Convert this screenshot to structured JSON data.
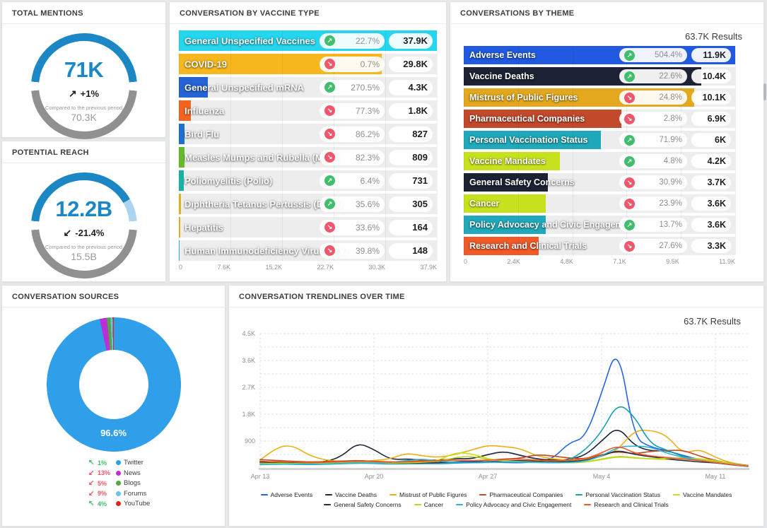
{
  "colors": {
    "gauge_blue": "#1b87c5",
    "gauge_lightblue": "#abd5ef",
    "gauge_gray": "#909090",
    "up_green": "#3fbe6b",
    "down_red": "#f2566a"
  },
  "panels": {
    "total_mentions": {
      "title": "TOTAL MENTIONS",
      "value": "71K",
      "trend_arrow": "↗",
      "trend": "+1%",
      "compare_label": "Compared to the previous period",
      "previous": "70.3K",
      "ring_segments": [
        {
          "color": "#909090",
          "from": 0,
          "to": 170
        },
        {
          "color": "transparent",
          "from": 170,
          "to": 180
        },
        {
          "color": "#1b87c5",
          "from": 180,
          "to": 350
        },
        {
          "color": "transparent",
          "from": 350,
          "to": 360
        }
      ]
    },
    "potential_reach": {
      "title": "POTENTIAL REACH",
      "value": "12.2B",
      "trend_arrow": "↙",
      "trend": "-21.4%",
      "compare_label": "Compared to the previous period",
      "previous": "15.5B",
      "ring_segments": [
        {
          "color": "#909090",
          "from": 0,
          "to": 170
        },
        {
          "color": "transparent",
          "from": 170,
          "to": 180
        },
        {
          "color": "#1b87c5",
          "from": 180,
          "to": 325
        },
        {
          "color": "#abd5ef",
          "from": 325,
          "to": 350
        },
        {
          "color": "transparent",
          "from": 350,
          "to": 360
        }
      ]
    },
    "vaccine_type": {
      "title": "CONVERSATION BY VACCINE TYPE",
      "type": "bar",
      "max": 37900,
      "axis": [
        "0",
        "7.6K",
        "15.2K",
        "22.7K",
        "30.3K",
        "37.9K"
      ],
      "rows": [
        {
          "label": "General Unspecified Vaccines",
          "color": "#25d6ee",
          "value": 37900,
          "value_label": "37.9K",
          "pct": "22.7%",
          "dir": "up"
        },
        {
          "label": "COVID-19",
          "color": "#f6b71f",
          "value": 29800,
          "value_label": "29.8K",
          "pct": "0.7%",
          "dir": "down"
        },
        {
          "label": "General Unspecified mRNA",
          "color": "#2563d4",
          "value": 4300,
          "value_label": "4.3K",
          "pct": "270.5%",
          "dir": "up"
        },
        {
          "label": "Influenza",
          "color": "#f2641f",
          "value": 1800,
          "value_label": "1.8K",
          "pct": "77.3%",
          "dir": "down"
        },
        {
          "label": "Bird Flu",
          "color": "#1e6fd2",
          "value": 827,
          "value_label": "827",
          "pct": "86.2%",
          "dir": "down"
        },
        {
          "label": "Measles Mumps and Rubella (MMR)",
          "color": "#63bb2a",
          "value": 809,
          "value_label": "809",
          "pct": "82.3%",
          "dir": "down"
        },
        {
          "label": "Poliomyelitis (Polio)",
          "color": "#17b1a6",
          "value": 731,
          "value_label": "731",
          "pct": "6.4%",
          "dir": "up"
        },
        {
          "label": "Diphtheria Tetanus Pertussis (DTaP)",
          "color": "#e3b220",
          "value": 305,
          "value_label": "305",
          "pct": "35.6%",
          "dir": "up"
        },
        {
          "label": "Hepatitis",
          "color": "#e3b220",
          "value": 164,
          "value_label": "164",
          "pct": "33.6%",
          "dir": "down"
        },
        {
          "label": "Human Immunodeficiency Virus (HIV)",
          "color": "#27bfdf",
          "value": 148,
          "value_label": "148",
          "pct": "39.8%",
          "dir": "down"
        }
      ]
    },
    "theme": {
      "title": "CONVERSATIONS BY THEME",
      "results": "63.7K Results",
      "type": "bar",
      "max": 11900,
      "axis": [
        "0",
        "2.4K",
        "4.8K",
        "7.1K",
        "9.5K",
        "11.9K"
      ],
      "rows": [
        {
          "label": "Adverse Events",
          "color": "#2159e0",
          "value": 11900,
          "value_label": "11.9K",
          "pct": "504.4%",
          "dir": "up"
        },
        {
          "label": "Vaccine Deaths",
          "color": "#1d2334",
          "value": 10400,
          "value_label": "10.4K",
          "pct": "22.6%",
          "dir": "up"
        },
        {
          "label": "Mistrust of Public Figures",
          "color": "#e3a81e",
          "value": 10100,
          "value_label": "10.1K",
          "pct": "24.8%",
          "dir": "down"
        },
        {
          "label": "Pharmaceutical Companies",
          "color": "#c2492a",
          "value": 6900,
          "value_label": "6.9K",
          "pct": "2.8%",
          "dir": "down"
        },
        {
          "label": "Personal Vaccination Status",
          "color": "#1fa9bb",
          "value": 6000,
          "value_label": "6K",
          "pct": "71.9%",
          "dir": "up"
        },
        {
          "label": "Vaccine Mandates",
          "color": "#c8e11e",
          "value": 4200,
          "value_label": "4.2K",
          "pct": "4.8%",
          "dir": "up"
        },
        {
          "label": "General Safety Concerns",
          "color": "#1d2334",
          "value": 3700,
          "value_label": "3.7K",
          "pct": "30.9%",
          "dir": "down"
        },
        {
          "label": "Cancer",
          "color": "#c8e11e",
          "value": 3600,
          "value_label": "3.6K",
          "pct": "23.9%",
          "dir": "down"
        },
        {
          "label": "Policy Advocacy and Civic Engagement",
          "color": "#1fa9bb",
          "value": 3600,
          "value_label": "3.6K",
          "pct": "13.7%",
          "dir": "up"
        },
        {
          "label": "Research and Clinical Trials",
          "color": "#f05a28",
          "value": 3300,
          "value_label": "3.3K",
          "pct": "27.6%",
          "dir": "down"
        }
      ]
    },
    "sources": {
      "title": "CONVERSATION SOURCES",
      "type": "pie",
      "center_label": "96.6%",
      "slices": [
        {
          "name": "Twitter",
          "color": "#2e9fe8",
          "share": 96.6
        },
        {
          "name": "News",
          "color": "#bd2fd6",
          "share": 1.7
        },
        {
          "name": "Blogs",
          "color": "#55a53e",
          "share": 0.9
        },
        {
          "name": "Forums",
          "color": "#66c4e8",
          "share": 0.5
        },
        {
          "name": "YouTube",
          "color": "#e02424",
          "share": 0.3
        }
      ],
      "legend": [
        {
          "dir": "up",
          "pct": "1%",
          "label": "Twitter",
          "dot": "#2e9fe8"
        },
        {
          "dir": "down",
          "pct": "13%",
          "label": "News",
          "dot": "#bd2fd6"
        },
        {
          "dir": "down",
          "pct": "5%",
          "label": "Blogs",
          "dot": "#55a53e"
        },
        {
          "dir": "down",
          "pct": "9%",
          "label": "Forums",
          "dot": "#66c4e8"
        },
        {
          "dir": "up",
          "pct": "4%",
          "label": "YouTube",
          "dot": "#e02424"
        }
      ]
    },
    "trendlines": {
      "title": "CONVERSATION TRENDLINES OVER TIME",
      "results": "63.7K Results",
      "type": "line",
      "y_ticks": [
        {
          "value": 900,
          "label": "900"
        },
        {
          "value": 1800,
          "label": "1.8K"
        },
        {
          "value": 2700,
          "label": "2.7K"
        },
        {
          "value": 3600,
          "label": "3.6K"
        },
        {
          "value": 4500,
          "label": "4.5K"
        }
      ],
      "y_minor_step": 450,
      "y_max": 4500,
      "x_ticks": [
        {
          "day": 0,
          "label": "Apr 13"
        },
        {
          "day": 7,
          "label": "Apr 20"
        },
        {
          "day": 14,
          "label": "Apr 27"
        },
        {
          "day": 21,
          "label": "May 4"
        },
        {
          "day": 28,
          "label": "May 11"
        }
      ],
      "days_total": 30,
      "legend_split": 6,
      "series": [
        {
          "name": "Adverse Events",
          "color": "#2563e8",
          "values": [
            150,
            170,
            150,
            130,
            140,
            180,
            220,
            190,
            160,
            150,
            140,
            170,
            200,
            230,
            200,
            180,
            170,
            200,
            300,
            850,
            1000,
            2500,
            4200,
            1000,
            700,
            580,
            420,
            280,
            170,
            100,
            50
          ]
        },
        {
          "name": "Vaccine Deaths",
          "color": "#20263a",
          "values": [
            220,
            200,
            190,
            180,
            200,
            380,
            850,
            620,
            280,
            300,
            270,
            250,
            320,
            300,
            450,
            560,
            420,
            300,
            260,
            280,
            420,
            900,
            1400,
            750,
            560,
            600,
            380,
            260,
            220,
            140,
            80
          ]
        },
        {
          "name": "Mistrust of Public Figures",
          "color": "#eab013",
          "values": [
            260,
            700,
            760,
            420,
            260,
            220,
            200,
            250,
            300,
            500,
            400,
            350,
            450,
            600,
            760,
            720,
            650,
            400,
            300,
            260,
            300,
            380,
            600,
            1250,
            1270,
            1100,
            470,
            640,
            350,
            160,
            80
          ]
        },
        {
          "name": "Pharmaceutical Companies",
          "color": "#bf4a28",
          "values": [
            280,
            250,
            220,
            200,
            210,
            230,
            250,
            220,
            200,
            210,
            250,
            230,
            260,
            240,
            260,
            300,
            320,
            450,
            400,
            330,
            300,
            450,
            550,
            470,
            560,
            580,
            600,
            400,
            250,
            150,
            80
          ]
        },
        {
          "name": "Personal Vaccination Status",
          "color": "#16a0b0",
          "values": [
            120,
            130,
            120,
            110,
            120,
            140,
            160,
            150,
            130,
            140,
            150,
            140,
            160,
            170,
            180,
            200,
            190,
            180,
            200,
            250,
            600,
            1200,
            2200,
            1750,
            800,
            600,
            380,
            260,
            190,
            120,
            60
          ]
        },
        {
          "name": "Vaccine Mandates",
          "color": "#cfdd1c",
          "values": [
            150,
            180,
            160,
            140,
            150,
            160,
            180,
            170,
            160,
            180,
            200,
            250,
            520,
            480,
            300,
            250,
            220,
            200,
            190,
            180,
            200,
            300,
            400,
            350,
            300,
            280,
            350,
            300,
            200,
            120,
            60
          ]
        },
        {
          "name": "General Safety Concerns",
          "color": "#252c40",
          "values": [
            180,
            170,
            160,
            150,
            160,
            180,
            200,
            190,
            170,
            160,
            170,
            180,
            200,
            190,
            210,
            230,
            250,
            220,
            200,
            210,
            250,
            400,
            600,
            450,
            380,
            300,
            250,
            200,
            170,
            110,
            60
          ]
        },
        {
          "name": "Cancer",
          "color": "#bcd626",
          "values": [
            140,
            160,
            150,
            140,
            150,
            170,
            190,
            180,
            160,
            170,
            190,
            220,
            350,
            400,
            280,
            240,
            210,
            190,
            180,
            170,
            190,
            280,
            380,
            330,
            300,
            320,
            340,
            310,
            250,
            140,
            70
          ]
        },
        {
          "name": "Policy Advocacy and Civic Engagement",
          "color": "#2ab4d8",
          "values": [
            110,
            120,
            130,
            120,
            130,
            150,
            170,
            160,
            180,
            250,
            300,
            220,
            180,
            170,
            190,
            210,
            200,
            180,
            170,
            180,
            220,
            400,
            700,
            740,
            700,
            500,
            350,
            250,
            180,
            110,
            50
          ]
        },
        {
          "name": "Research and Clinical Trials",
          "color": "#ef5a28",
          "values": [
            200,
            220,
            200,
            180,
            190,
            210,
            230,
            210,
            190,
            200,
            220,
            240,
            260,
            240,
            260,
            280,
            300,
            260,
            240,
            250,
            300,
            500,
            760,
            500,
            400,
            350,
            300,
            250,
            180,
            110,
            60
          ]
        }
      ]
    }
  }
}
